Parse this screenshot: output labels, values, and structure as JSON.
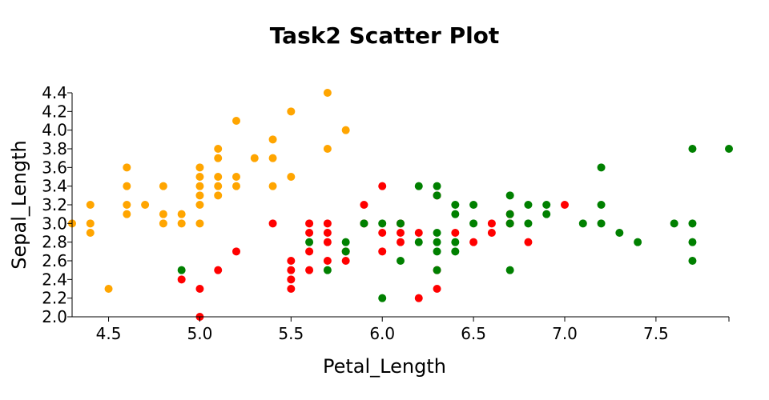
{
  "chart_data": {
    "type": "scatter",
    "title": "Task2 Scatter Plot",
    "xlabel": "Petal_Length",
    "ylabel": "Sepal_Length",
    "xlim": [
      4.3,
      7.9
    ],
    "ylim": [
      2.0,
      4.4
    ],
    "x_ticks": [
      "4.5",
      "5.0",
      "5.5",
      "6.0",
      "6.5",
      "7.0",
      "7.5"
    ],
    "y_ticks": [
      "2.0",
      "2.2",
      "2.4",
      "2.6",
      "2.8",
      "3.0",
      "3.2",
      "3.4",
      "3.6",
      "3.8",
      "4.0",
      "4.2",
      "4.4"
    ],
    "grid": false,
    "series": [
      {
        "color": "#ffa500",
        "points": [
          [
            4.3,
            3.0
          ],
          [
            4.4,
            2.9
          ],
          [
            4.4,
            3.0
          ],
          [
            4.4,
            3.2
          ],
          [
            4.5,
            2.3
          ],
          [
            4.6,
            3.1
          ],
          [
            4.6,
            3.2
          ],
          [
            4.6,
            3.4
          ],
          [
            4.6,
            3.6
          ],
          [
            4.7,
            3.2
          ],
          [
            4.8,
            3.0
          ],
          [
            4.8,
            3.1
          ],
          [
            4.8,
            3.4
          ],
          [
            4.9,
            3.0
          ],
          [
            4.9,
            3.1
          ],
          [
            5.0,
            3.0
          ],
          [
            5.0,
            3.2
          ],
          [
            5.0,
            3.3
          ],
          [
            5.0,
            3.4
          ],
          [
            5.0,
            3.5
          ],
          [
            5.0,
            3.6
          ],
          [
            5.1,
            3.3
          ],
          [
            5.1,
            3.4
          ],
          [
            5.1,
            3.5
          ],
          [
            5.1,
            3.7
          ],
          [
            5.1,
            3.8
          ],
          [
            5.2,
            3.4
          ],
          [
            5.2,
            3.5
          ],
          [
            5.2,
            4.1
          ],
          [
            5.3,
            3.7
          ],
          [
            5.4,
            3.4
          ],
          [
            5.4,
            3.7
          ],
          [
            5.4,
            3.9
          ],
          [
            5.5,
            3.5
          ],
          [
            5.5,
            4.2
          ],
          [
            5.7,
            3.8
          ],
          [
            5.7,
            4.4
          ],
          [
            5.8,
            4.0
          ]
        ]
      },
      {
        "color": "#ff0000",
        "points": [
          [
            4.9,
            2.4
          ],
          [
            5.0,
            2.0
          ],
          [
            5.0,
            2.3
          ],
          [
            5.1,
            2.5
          ],
          [
            5.2,
            2.7
          ],
          [
            5.4,
            3.0
          ],
          [
            5.5,
            2.3
          ],
          [
            5.5,
            2.4
          ],
          [
            5.5,
            2.5
          ],
          [
            5.5,
            2.6
          ],
          [
            5.6,
            2.5
          ],
          [
            5.6,
            2.7
          ],
          [
            5.6,
            2.9
          ],
          [
            5.6,
            3.0
          ],
          [
            5.7,
            2.6
          ],
          [
            5.7,
            2.8
          ],
          [
            5.7,
            2.9
          ],
          [
            5.7,
            3.0
          ],
          [
            5.8,
            2.6
          ],
          [
            5.8,
            2.7
          ],
          [
            5.9,
            3.0
          ],
          [
            5.9,
            3.2
          ],
          [
            6.0,
            2.7
          ],
          [
            6.0,
            2.9
          ],
          [
            6.0,
            3.4
          ],
          [
            6.1,
            2.8
          ],
          [
            6.1,
            2.9
          ],
          [
            6.1,
            3.0
          ],
          [
            6.2,
            2.2
          ],
          [
            6.2,
            2.9
          ],
          [
            6.3,
            2.3
          ],
          [
            6.3,
            2.5
          ],
          [
            6.3,
            3.3
          ],
          [
            6.4,
            2.9
          ],
          [
            6.5,
            2.8
          ],
          [
            6.6,
            2.9
          ],
          [
            6.6,
            3.0
          ],
          [
            6.7,
            3.0
          ],
          [
            6.7,
            3.1
          ],
          [
            6.8,
            2.8
          ],
          [
            7.0,
            3.2
          ]
        ]
      },
      {
        "color": "#008000",
        "points": [
          [
            4.9,
            2.5
          ],
          [
            5.6,
            2.8
          ],
          [
            5.7,
            2.5
          ],
          [
            5.8,
            2.7
          ],
          [
            5.8,
            2.8
          ],
          [
            5.9,
            3.0
          ],
          [
            6.0,
            2.2
          ],
          [
            6.0,
            3.0
          ],
          [
            6.1,
            2.6
          ],
          [
            6.1,
            3.0
          ],
          [
            6.2,
            2.8
          ],
          [
            6.2,
            3.4
          ],
          [
            6.3,
            2.5
          ],
          [
            6.3,
            2.7
          ],
          [
            6.3,
            2.8
          ],
          [
            6.3,
            2.9
          ],
          [
            6.3,
            3.3
          ],
          [
            6.3,
            3.4
          ],
          [
            6.4,
            2.7
          ],
          [
            6.4,
            2.8
          ],
          [
            6.4,
            3.1
          ],
          [
            6.4,
            3.2
          ],
          [
            6.5,
            3.0
          ],
          [
            6.5,
            3.2
          ],
          [
            6.7,
            2.5
          ],
          [
            6.7,
            3.0
          ],
          [
            6.7,
            3.1
          ],
          [
            6.7,
            3.3
          ],
          [
            6.8,
            3.0
          ],
          [
            6.8,
            3.2
          ],
          [
            6.9,
            3.1
          ],
          [
            6.9,
            3.2
          ],
          [
            7.1,
            3.0
          ],
          [
            7.2,
            3.0
          ],
          [
            7.2,
            3.2
          ],
          [
            7.2,
            3.6
          ],
          [
            7.3,
            2.9
          ],
          [
            7.4,
            2.8
          ],
          [
            7.6,
            3.0
          ],
          [
            7.7,
            2.6
          ],
          [
            7.7,
            2.8
          ],
          [
            7.7,
            3.0
          ],
          [
            7.7,
            3.8
          ],
          [
            7.9,
            3.8
          ]
        ]
      }
    ]
  }
}
